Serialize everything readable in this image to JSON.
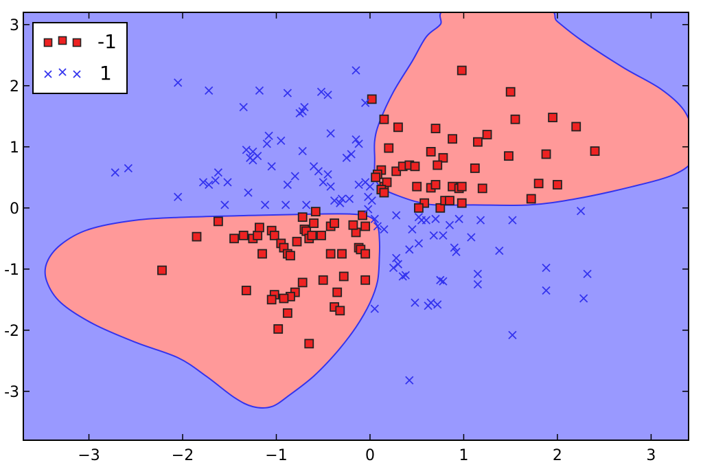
{
  "chart_data": {
    "type": "scatter",
    "title": "",
    "xlabel": "",
    "ylabel": "",
    "xlim": [
      -3.7,
      3.4
    ],
    "ylim": [
      -3.8,
      3.2
    ],
    "xticks": [
      -3,
      -2,
      -1,
      0,
      1,
      2,
      3
    ],
    "yticks": [
      -3,
      -2,
      -1,
      0,
      1,
      2,
      3
    ],
    "xtick_labels": [
      "−3",
      "−2",
      "−1",
      "0",
      "1",
      "2",
      "3"
    ],
    "ytick_labels": [
      "-3",
      "-2",
      "-1",
      "0",
      "1",
      "2",
      "3"
    ],
    "grid": false,
    "legend_position": "top-left",
    "background_region_color": "#9999ff",
    "decision_region_color": "#ff9999",
    "decision_boundary_color": "#3333ee",
    "decision_regions": [
      {
        "class": "-1",
        "outline": [
          [
            0.05,
            0.55
          ],
          [
            0.05,
            0.8
          ],
          [
            0.05,
            1.1
          ],
          [
            0.1,
            1.4
          ],
          [
            0.25,
            1.9
          ],
          [
            0.45,
            2.4
          ],
          [
            0.6,
            2.8
          ],
          [
            0.75,
            3.0
          ],
          [
            0.85,
            3.25
          ],
          [
            1.85,
            3.25
          ],
          [
            2.0,
            3.05
          ],
          [
            2.25,
            2.75
          ],
          [
            2.7,
            2.3
          ],
          [
            3.1,
            1.95
          ],
          [
            3.35,
            1.6
          ],
          [
            3.45,
            1.2
          ],
          [
            3.45,
            0.8
          ],
          [
            3.25,
            0.55
          ],
          [
            2.8,
            0.35
          ],
          [
            2.2,
            0.15
          ],
          [
            1.7,
            0.05
          ],
          [
            1.1,
            0.05
          ],
          [
            0.7,
            0.05
          ],
          [
            0.5,
            0.1
          ],
          [
            0.3,
            0.2
          ],
          [
            0.15,
            0.3
          ],
          [
            0.08,
            0.4
          ]
        ]
      },
      {
        "class": "-1",
        "outline": [
          [
            0.08,
            -0.3
          ],
          [
            0.1,
            -0.5
          ],
          [
            0.1,
            -0.8
          ],
          [
            0.08,
            -1.2
          ],
          [
            0.0,
            -1.55
          ],
          [
            -0.15,
            -1.95
          ],
          [
            -0.35,
            -2.35
          ],
          [
            -0.6,
            -2.75
          ],
          [
            -0.85,
            -3.05
          ],
          [
            -1.05,
            -3.25
          ],
          [
            -1.25,
            -3.25
          ],
          [
            -1.45,
            -3.1
          ],
          [
            -1.75,
            -2.75
          ],
          [
            -2.05,
            -2.45
          ],
          [
            -2.5,
            -2.2
          ],
          [
            -2.95,
            -1.9
          ],
          [
            -3.3,
            -1.55
          ],
          [
            -3.45,
            -1.2
          ],
          [
            -3.45,
            -0.9
          ],
          [
            -3.3,
            -0.6
          ],
          [
            -3.0,
            -0.35
          ],
          [
            -2.5,
            -0.2
          ],
          [
            -1.95,
            -0.15
          ],
          [
            -1.2,
            -0.12
          ],
          [
            -0.6,
            -0.1
          ],
          [
            -0.2,
            -0.1
          ],
          [
            0.0,
            -0.15
          ]
        ]
      }
    ],
    "series": [
      {
        "name": "-1",
        "marker": "square",
        "color": "#ee2222",
        "edge_color": "#222222",
        "points": [
          [
            0.98,
            2.25
          ],
          [
            1.5,
            1.9
          ],
          [
            1.55,
            1.45
          ],
          [
            1.95,
            1.48
          ],
          [
            2.2,
            1.33
          ],
          [
            2.4,
            0.93
          ],
          [
            0.02,
            1.78
          ],
          [
            0.15,
            1.45
          ],
          [
            0.3,
            1.32
          ],
          [
            0.2,
            0.98
          ],
          [
            0.7,
            1.3
          ],
          [
            0.88,
            1.13
          ],
          [
            1.15,
            1.08
          ],
          [
            1.25,
            1.2
          ],
          [
            1.48,
            0.85
          ],
          [
            1.88,
            0.88
          ],
          [
            0.65,
            0.92
          ],
          [
            0.78,
            0.82
          ],
          [
            0.72,
            0.7
          ],
          [
            0.28,
            0.6
          ],
          [
            0.35,
            0.68
          ],
          [
            0.42,
            0.7
          ],
          [
            0.48,
            0.68
          ],
          [
            0.12,
            0.62
          ],
          [
            0.08,
            0.55
          ],
          [
            0.06,
            0.5
          ],
          [
            0.15,
            0.35
          ],
          [
            0.18,
            0.42
          ],
          [
            0.12,
            0.3
          ],
          [
            0.15,
            0.25
          ],
          [
            0.5,
            0.35
          ],
          [
            0.58,
            0.08
          ],
          [
            0.65,
            0.33
          ],
          [
            0.7,
            0.38
          ],
          [
            0.88,
            0.35
          ],
          [
            0.95,
            0.32
          ],
          [
            0.98,
            0.35
          ],
          [
            0.75,
            0.0
          ],
          [
            0.8,
            0.12
          ],
          [
            0.85,
            0.12
          ],
          [
            0.98,
            0.08
          ],
          [
            1.12,
            0.65
          ],
          [
            1.2,
            0.32
          ],
          [
            1.72,
            0.15
          ],
          [
            1.8,
            0.4
          ],
          [
            2.0,
            0.38
          ],
          [
            0.52,
            0.0
          ],
          [
            -2.22,
            -1.02
          ],
          [
            -1.85,
            -0.47
          ],
          [
            -1.62,
            -0.22
          ],
          [
            -1.45,
            -0.5
          ],
          [
            -1.35,
            -0.45
          ],
          [
            -1.25,
            -0.5
          ],
          [
            -1.2,
            -0.45
          ],
          [
            -1.18,
            -0.32
          ],
          [
            -1.15,
            -0.75
          ],
          [
            -1.05,
            -0.37
          ],
          [
            -1.02,
            -0.45
          ],
          [
            -0.95,
            -0.58
          ],
          [
            -0.92,
            -0.65
          ],
          [
            -0.88,
            -0.75
          ],
          [
            -0.85,
            -0.78
          ],
          [
            -0.78,
            -0.55
          ],
          [
            -0.72,
            -0.15
          ],
          [
            -0.7,
            -0.35
          ],
          [
            -0.68,
            -0.38
          ],
          [
            -0.65,
            -0.5
          ],
          [
            -0.62,
            -0.45
          ],
          [
            -0.6,
            -0.25
          ],
          [
            -0.58,
            -0.06
          ],
          [
            -0.52,
            -0.45
          ],
          [
            -0.42,
            -0.3
          ],
          [
            -0.38,
            -0.25
          ],
          [
            -0.42,
            -0.75
          ],
          [
            -0.3,
            -0.75
          ],
          [
            -0.15,
            -0.4
          ],
          [
            -0.18,
            -0.28
          ],
          [
            -0.08,
            -0.12
          ],
          [
            -0.05,
            -0.3
          ],
          [
            -0.12,
            -0.65
          ],
          [
            -0.1,
            -0.68
          ],
          [
            -0.05,
            -0.75
          ],
          [
            -0.05,
            -1.18
          ],
          [
            -0.28,
            -1.12
          ],
          [
            -0.5,
            -1.18
          ],
          [
            -0.72,
            -1.22
          ],
          [
            -0.8,
            -1.38
          ],
          [
            -0.85,
            -1.45
          ],
          [
            -0.92,
            -1.48
          ],
          [
            -1.02,
            -1.42
          ],
          [
            -1.05,
            -1.5
          ],
          [
            -1.32,
            -1.35
          ],
          [
            -0.35,
            -1.38
          ],
          [
            -0.38,
            -1.62
          ],
          [
            -0.32,
            -1.68
          ],
          [
            -0.88,
            -1.72
          ],
          [
            -0.98,
            -1.98
          ],
          [
            -0.65,
            -2.22
          ]
        ]
      },
      {
        "name": "1",
        "marker": "x",
        "color": "#3333ee",
        "points": [
          [
            -2.05,
            2.05
          ],
          [
            -1.72,
            1.92
          ],
          [
            -1.18,
            1.92
          ],
          [
            -0.88,
            1.88
          ],
          [
            -0.52,
            1.9
          ],
          [
            -0.45,
            1.85
          ],
          [
            -0.15,
            2.25
          ],
          [
            -0.05,
            1.72
          ],
          [
            -1.35,
            1.65
          ],
          [
            -0.7,
            1.65
          ],
          [
            -0.72,
            1.58
          ],
          [
            -0.75,
            1.55
          ],
          [
            -1.08,
            1.18
          ],
          [
            -0.95,
            1.1
          ],
          [
            -1.1,
            1.05
          ],
          [
            -1.32,
            0.95
          ],
          [
            -1.25,
            0.92
          ],
          [
            -1.2,
            0.85
          ],
          [
            -1.28,
            0.82
          ],
          [
            -1.25,
            0.78
          ],
          [
            -1.05,
            0.68
          ],
          [
            -0.72,
            0.93
          ],
          [
            -0.42,
            1.22
          ],
          [
            -0.15,
            1.12
          ],
          [
            -0.12,
            1.05
          ],
          [
            -0.2,
            0.88
          ],
          [
            -0.25,
            0.82
          ],
          [
            -2.72,
            0.58
          ],
          [
            -2.58,
            0.65
          ],
          [
            -2.05,
            0.18
          ],
          [
            -1.78,
            0.42
          ],
          [
            -1.72,
            0.38
          ],
          [
            -1.62,
            0.58
          ],
          [
            -1.65,
            0.45
          ],
          [
            -1.52,
            0.42
          ],
          [
            -1.55,
            0.05
          ],
          [
            -1.3,
            0.25
          ],
          [
            -1.12,
            0.05
          ],
          [
            -0.9,
            0.05
          ],
          [
            -0.88,
            0.38
          ],
          [
            -0.8,
            0.52
          ],
          [
            -0.68,
            0.05
          ],
          [
            -0.6,
            0.68
          ],
          [
            -0.55,
            0.6
          ],
          [
            -0.5,
            0.42
          ],
          [
            -0.45,
            0.55
          ],
          [
            -0.42,
            0.35
          ],
          [
            -0.38,
            0.12
          ],
          [
            -0.32,
            0.08
          ],
          [
            -0.3,
            0.15
          ],
          [
            -0.22,
            0.15
          ],
          [
            -0.12,
            0.38
          ],
          [
            -0.05,
            0.42
          ],
          [
            0.0,
            0.35
          ],
          [
            -0.02,
            0.18
          ],
          [
            0.02,
            0.12
          ],
          [
            -0.02,
            -0.02
          ],
          [
            0.05,
            -0.18
          ],
          [
            0.08,
            -0.3
          ],
          [
            0.15,
            -0.35
          ],
          [
            0.28,
            -0.12
          ],
          [
            0.45,
            -0.35
          ],
          [
            0.52,
            -0.15
          ],
          [
            0.55,
            -0.2
          ],
          [
            0.6,
            -0.2
          ],
          [
            0.52,
            -0.58
          ],
          [
            0.42,
            -0.68
          ],
          [
            0.7,
            -0.18
          ],
          [
            0.68,
            -0.45
          ],
          [
            0.78,
            -0.45
          ],
          [
            0.85,
            -0.28
          ],
          [
            0.9,
            -0.65
          ],
          [
            0.92,
            -0.72
          ],
          [
            0.95,
            -0.18
          ],
          [
            1.08,
            -0.48
          ],
          [
            1.18,
            -0.2
          ],
          [
            1.38,
            -0.7
          ],
          [
            1.52,
            -0.2
          ],
          [
            2.25,
            -0.05
          ],
          [
            0.28,
            -0.82
          ],
          [
            0.3,
            -0.92
          ],
          [
            0.25,
            -0.98
          ],
          [
            0.35,
            -1.12
          ],
          [
            0.38,
            -1.1
          ],
          [
            0.48,
            -1.55
          ],
          [
            0.62,
            -1.6
          ],
          [
            0.65,
            -1.55
          ],
          [
            0.72,
            -1.58
          ],
          [
            0.75,
            -1.18
          ],
          [
            0.78,
            -1.2
          ],
          [
            1.15,
            -1.08
          ],
          [
            1.15,
            -1.25
          ],
          [
            1.88,
            -0.98
          ],
          [
            1.88,
            -1.35
          ],
          [
            2.28,
            -1.48
          ],
          [
            2.32,
            -1.08
          ],
          [
            1.52,
            -2.08
          ],
          [
            0.42,
            -2.82
          ],
          [
            0.05,
            -1.65
          ]
        ]
      }
    ]
  },
  "legend": {
    "entries": [
      {
        "label": "-1",
        "marker": "square",
        "color": "#ee2222"
      },
      {
        "label": "1",
        "marker": "x",
        "color": "#3333ee"
      }
    ]
  }
}
